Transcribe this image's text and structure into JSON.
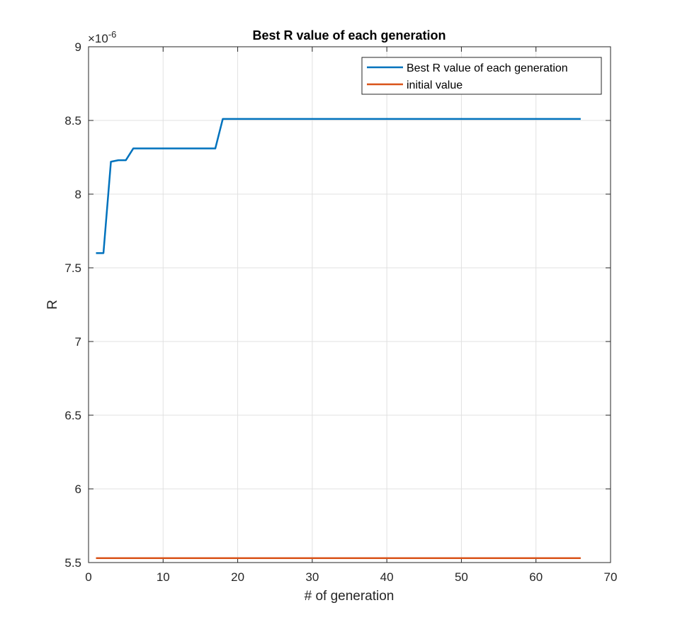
{
  "chart_data": {
    "type": "line",
    "title": "Best R value of each generation",
    "xlabel": "# of generation",
    "ylabel": "R",
    "exponent_label": "×10",
    "exponent_power": "-6",
    "xlim": [
      0,
      70
    ],
    "ylim": [
      5.5,
      9
    ],
    "xticks": [
      0,
      10,
      20,
      30,
      40,
      50,
      60,
      70
    ],
    "xtick_labels": [
      "0",
      "10",
      "20",
      "30",
      "40",
      "50",
      "60",
      "70"
    ],
    "yticks": [
      5.5,
      6,
      6.5,
      7,
      7.5,
      8,
      8.5,
      9
    ],
    "ytick_labels": [
      "5.5",
      "6",
      "6.5",
      "7",
      "7.5",
      "8",
      "8.5",
      "9"
    ],
    "grid": true,
    "legend_position": "top-right",
    "series": [
      {
        "name": "Best R value of each generation",
        "color": "#0072BD",
        "x": [
          1,
          2,
          3,
          4,
          5,
          6,
          7,
          8,
          9,
          10,
          11,
          12,
          13,
          14,
          15,
          16,
          17,
          18,
          19,
          20,
          66
        ],
        "y": [
          7.6,
          7.6,
          8.22,
          8.23,
          8.23,
          8.31,
          8.31,
          8.31,
          8.31,
          8.31,
          8.31,
          8.31,
          8.31,
          8.31,
          8.31,
          8.31,
          8.31,
          8.51,
          8.51,
          8.51,
          8.51
        ]
      },
      {
        "name": "initial value",
        "color": "#D95319",
        "x": [
          1,
          66
        ],
        "y": [
          5.53,
          5.53
        ]
      }
    ]
  }
}
